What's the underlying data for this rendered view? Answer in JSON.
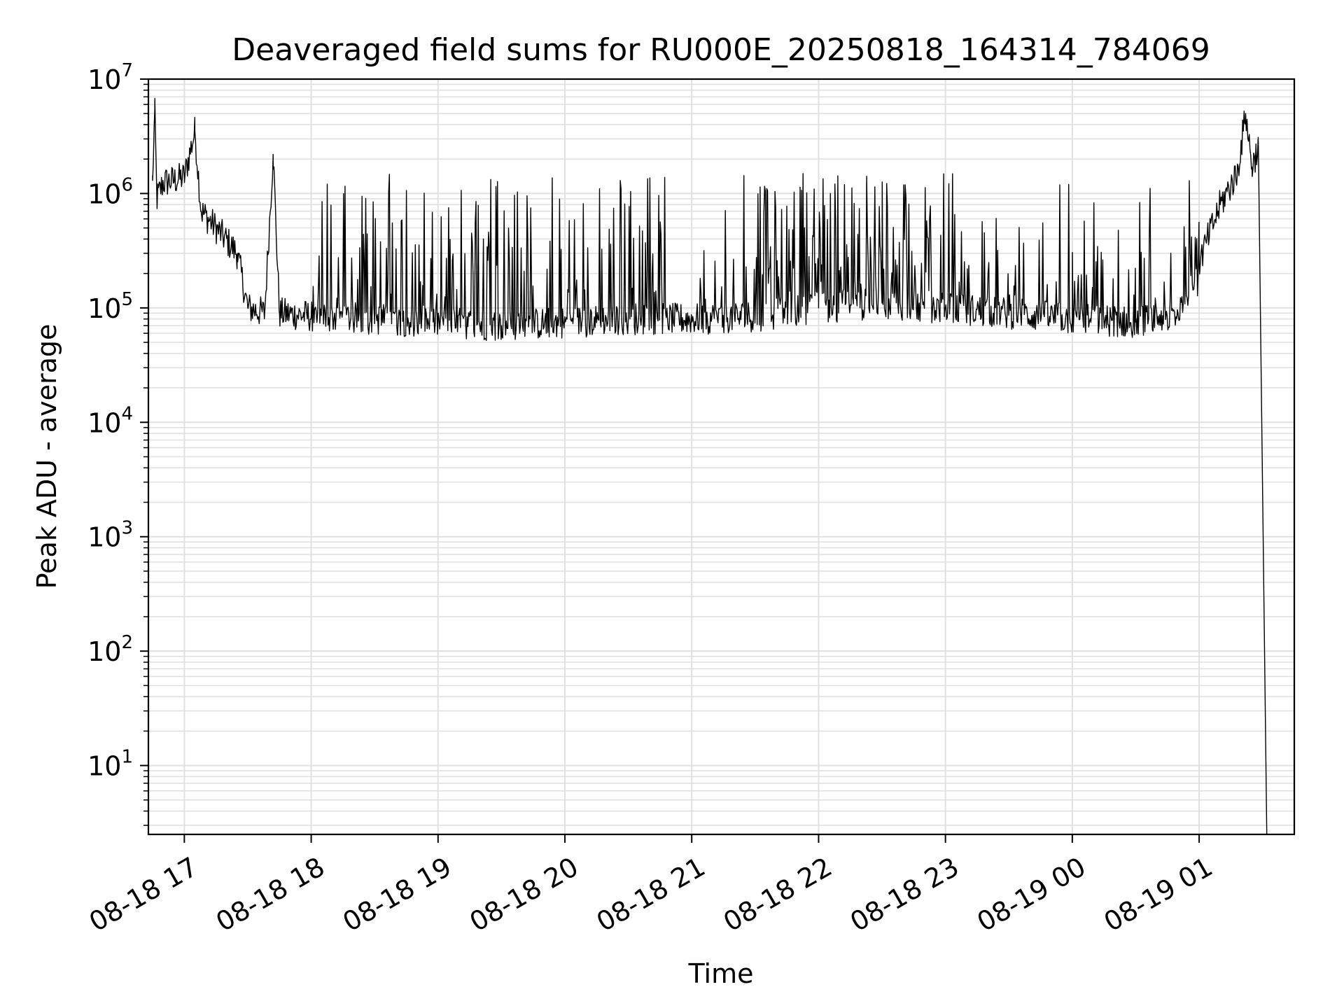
{
  "chart_data": {
    "type": "line",
    "title": "Deaveraged field sums for RU000E_20250818_164314_784069",
    "xlabel": "Time",
    "ylabel": "Peak ADU - average",
    "yscale": "log",
    "ylim": [
      2.5,
      10000000
    ],
    "xlim": [
      "2025-08-18 16:43",
      "2025-08-19 01:45"
    ],
    "x_ticks": [
      {
        "t": "2025-08-18 17:00",
        "label": "08-18 17"
      },
      {
        "t": "2025-08-18 18:00",
        "label": "08-18 18"
      },
      {
        "t": "2025-08-18 19:00",
        "label": "08-18 19"
      },
      {
        "t": "2025-08-18 20:00",
        "label": "08-18 20"
      },
      {
        "t": "2025-08-18 21:00",
        "label": "08-18 21"
      },
      {
        "t": "2025-08-18 22:00",
        "label": "08-18 22"
      },
      {
        "t": "2025-08-18 23:00",
        "label": "08-18 23"
      },
      {
        "t": "2025-08-19 00:00",
        "label": "08-19 00"
      },
      {
        "t": "2025-08-19 01:00",
        "label": "08-19 01"
      }
    ],
    "y_ticks": [
      {
        "value": 10,
        "base": "10",
        "exp": "1"
      },
      {
        "value": 100,
        "base": "10",
        "exp": "2"
      },
      {
        "value": 1000,
        "base": "10",
        "exp": "3"
      },
      {
        "value": 10000,
        "base": "10",
        "exp": "4"
      },
      {
        "value": 100000,
        "base": "10",
        "exp": "5"
      },
      {
        "value": 1000000,
        "base": "10",
        "exp": "6"
      },
      {
        "value": 10000000,
        "base": "10",
        "exp": "7"
      }
    ],
    "grid": true,
    "line_color": "#000000",
    "grid_color": "#e0e0e0",
    "series": [
      {
        "values": [
          [
            "2025-08-18 16:45",
            1300000
          ],
          [
            "2025-08-18 16:46",
            5400000
          ],
          [
            "2025-08-18 16:47",
            900000
          ],
          [
            "2025-08-18 16:50",
            1250000
          ],
          [
            "2025-08-18 16:55",
            1300000
          ],
          [
            "2025-08-18 17:00",
            1400000
          ],
          [
            "2025-08-18 17:05",
            3500000
          ],
          [
            "2025-08-18 17:08",
            700000
          ],
          [
            "2025-08-18 17:15",
            500000
          ],
          [
            "2025-08-18 17:25",
            300000
          ],
          [
            "2025-08-18 17:30",
            100000
          ],
          [
            "2025-08-18 17:38",
            90000
          ],
          [
            "2025-08-18 17:42",
            2200000
          ],
          [
            "2025-08-18 17:45",
            90000
          ],
          [
            "2025-08-18 18:00",
            85000
          ],
          [
            "2025-08-18 18:30",
            80000
          ],
          [
            "2025-08-18 19:00",
            75000
          ],
          [
            "2025-08-18 19:30",
            70000
          ],
          [
            "2025-08-18 20:00",
            75000
          ],
          [
            "2025-08-18 20:30",
            80000
          ],
          [
            "2025-08-18 21:00",
            80000
          ],
          [
            "2025-08-18 21:30",
            85000
          ],
          [
            "2025-08-18 22:00",
            100000
          ],
          [
            "2025-08-18 22:30",
            110000
          ],
          [
            "2025-08-18 23:00",
            100000
          ],
          [
            "2025-08-18 23:30",
            90000
          ],
          [
            "2025-08-19 00:00",
            80000
          ],
          [
            "2025-08-19 00:30",
            75000
          ],
          [
            "2025-08-19 00:50",
            90000
          ],
          [
            "2025-08-19 01:00",
            250000
          ],
          [
            "2025-08-19 01:10",
            800000
          ],
          [
            "2025-08-19 01:18",
            1500000
          ],
          [
            "2025-08-19 01:22",
            5000000
          ],
          [
            "2025-08-19 01:25",
            1700000
          ],
          [
            "2025-08-19 01:28",
            2600000
          ],
          [
            "2025-08-19 01:32",
            2.5
          ]
        ],
        "spike_peak_adu": 1500000,
        "spike_windows": [
          [
            "2025-08-18 18:00",
            "2025-08-18 20:48"
          ],
          [
            "2025-08-18 21:03",
            "2025-08-19 01:00"
          ]
        ]
      }
    ]
  }
}
